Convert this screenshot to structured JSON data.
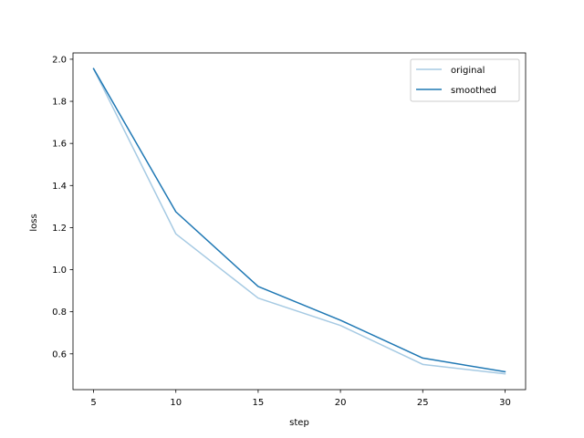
{
  "chart_data": {
    "type": "line",
    "xlabel": "step",
    "ylabel": "loss",
    "xlim": [
      3.75,
      31.25
    ],
    "ylim": [
      0.43,
      2.03
    ],
    "xticks": [
      5,
      10,
      15,
      20,
      25,
      30
    ],
    "yticks": [
      0.6,
      0.8,
      1.0,
      1.2,
      1.4,
      1.6,
      1.8,
      2.0
    ],
    "xtick_labels": [
      "5",
      "10",
      "15",
      "20",
      "25",
      "30"
    ],
    "ytick_labels": [
      "0.6",
      "0.8",
      "1.0",
      "1.2",
      "1.4",
      "1.6",
      "1.8",
      "2.0"
    ],
    "grid": false,
    "legend_position": "top-right",
    "x": [
      5,
      10,
      15,
      20,
      25,
      30
    ],
    "series": [
      {
        "name": "original",
        "color": "#a6cae3",
        "values": [
          1.955,
          1.17,
          0.865,
          0.735,
          0.55,
          0.505
        ]
      },
      {
        "name": "smoothed",
        "color": "#1f78b4",
        "values": [
          1.955,
          1.275,
          0.92,
          0.76,
          0.58,
          0.515
        ]
      }
    ]
  }
}
